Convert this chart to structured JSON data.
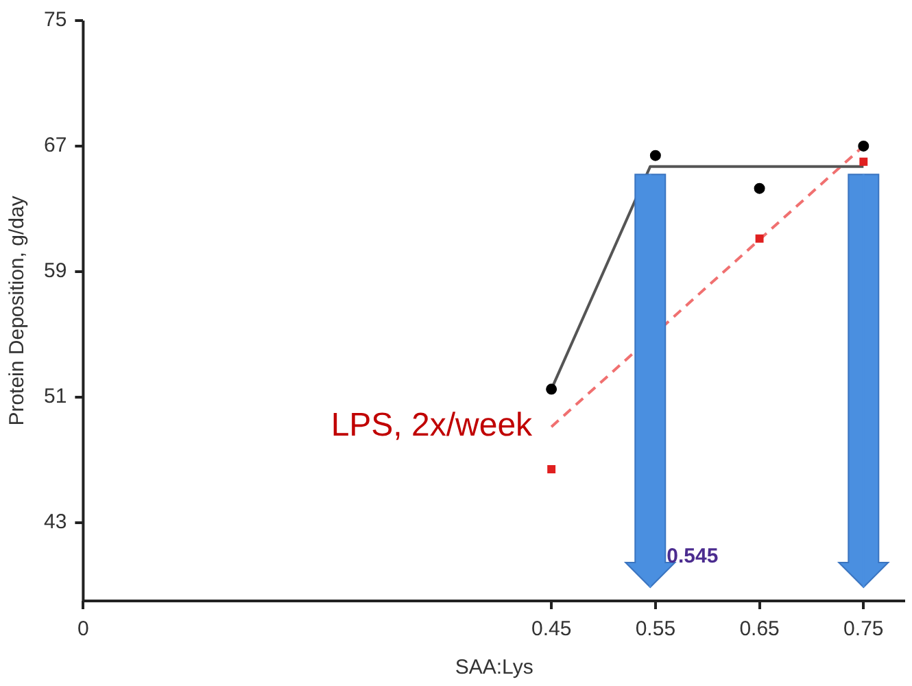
{
  "chart_data": {
    "type": "scatter",
    "xlabel": "SAA:Lys",
    "ylabel": "Protein Deposition, g/day",
    "x": [
      0.45,
      0.55,
      0.65,
      0.75
    ],
    "series": [
      {
        "color": "#000000",
        "marker": "circle",
        "values": [
          51.5,
          66.4,
          64.3,
          67.0
        ]
      },
      {
        "color": "#e02020",
        "marker": "square",
        "values": [
          46.4,
          null,
          61.1,
          66.0
        ]
      },
      {
        "type": "line",
        "color": "#555555",
        "line_style": "solid",
        "marker": "none",
        "x": [
          0.45,
          0.545,
          0.75
        ],
        "values": [
          51.5,
          65.7,
          65.7
        ]
      },
      {
        "type": "line",
        "name": "LPS, 2x/week",
        "color": "#f07070",
        "line_style": "dashed",
        "marker": "none",
        "x": [
          0.45,
          0.75
        ],
        "values": [
          49.1,
          67.0
        ]
      }
    ],
    "ref_lines": [
      {
        "axis": "x",
        "value": 0.545,
        "label": "0.545",
        "color": "#4a8fe0"
      },
      {
        "axis": "x",
        "value": 0.75,
        "color": "#4a8fe0"
      }
    ],
    "xlim": [
      0,
      0.79
    ],
    "xticks": [
      0,
      0.45,
      0.55,
      0.65,
      0.75
    ],
    "ylim": [
      38,
      75
    ],
    "yticks": [
      43,
      51,
      59,
      67,
      75
    ],
    "grid": false,
    "legend": false
  }
}
